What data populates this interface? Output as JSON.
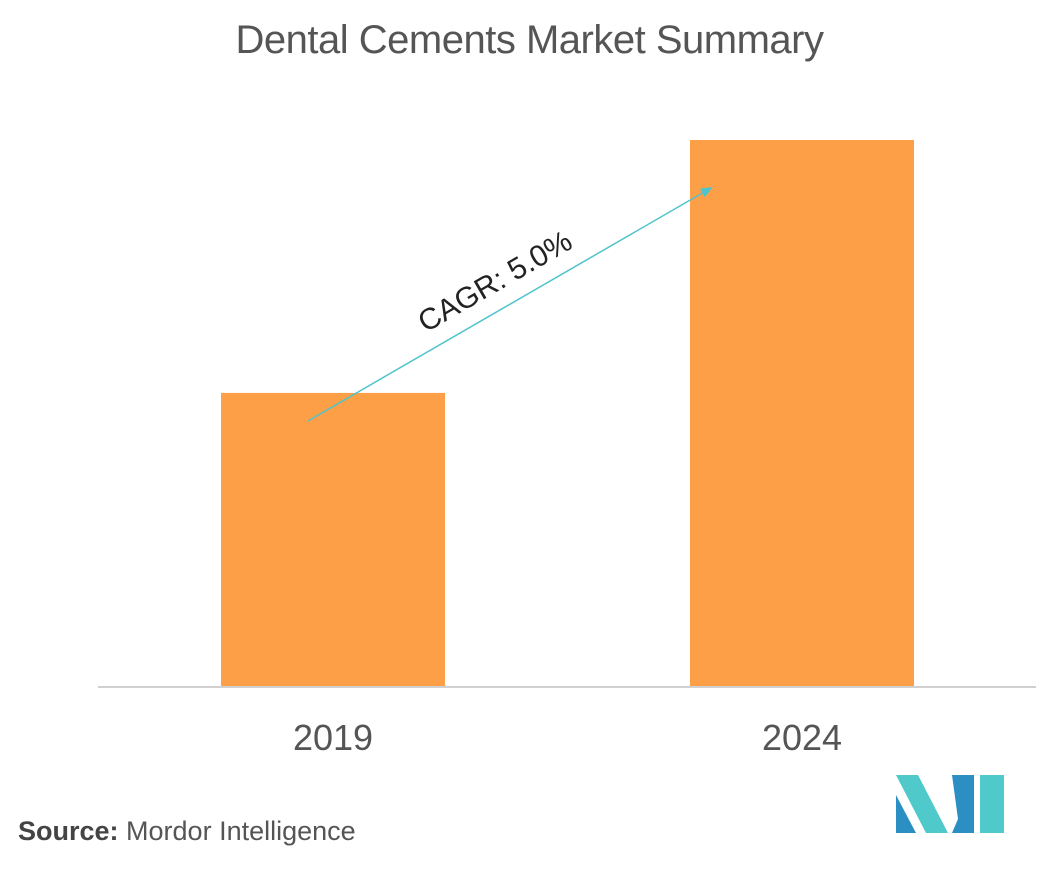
{
  "title": "Dental Cements Market Summary",
  "source": {
    "label": "Source:",
    "text": "Mordor Intelligence"
  },
  "annotation": {
    "text": "CAGR: 5.0%",
    "color": "#4fc4cc"
  },
  "logo": {
    "icon": "mordor-intelligence-logo",
    "colors": [
      "#2b8fc4",
      "#4fc9c9"
    ]
  },
  "colors": {
    "bar": "#fd9f46",
    "axis": "#d0d0d0",
    "text": "#555555"
  },
  "chart_data": {
    "type": "bar",
    "title": "Dental Cements Market Summary",
    "categories": [
      "2019",
      "2024"
    ],
    "values": [
      1.0,
      1.86
    ],
    "xlabel": "",
    "ylabel": "",
    "ylim": [
      0,
      2.0
    ],
    "grid": false,
    "legend": "none",
    "value_labels_shown": false
  }
}
